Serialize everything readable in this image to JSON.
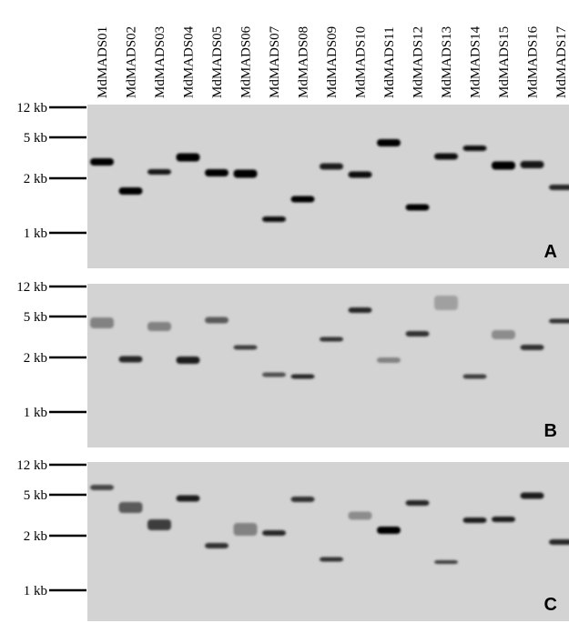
{
  "lanes": [
    "MdMADS01",
    "MdMADS02",
    "MdMADS03",
    "MdMADS04",
    "MdMADS05",
    "MdMADS06",
    "MdMADS07",
    "MdMADS08",
    "MdMADS09",
    "MdMADS10",
    "MdMADS11",
    "MdMADS12",
    "MdMADS13",
    "MdMADS14",
    "MdMADS15",
    "MdMADS16",
    "MdMADS17"
  ],
  "panels": [
    {
      "label": "A",
      "markers": [
        "12 kb",
        "5 kb",
        "2 kb",
        "1 kb"
      ]
    },
    {
      "label": "B",
      "markers": [
        "12 kb",
        "5 kb",
        "2 kb",
        "1 kb"
      ]
    },
    {
      "label": "C",
      "markers": [
        "12 kb",
        "5 kb",
        "2 kb",
        "1 kb"
      ]
    }
  ]
}
